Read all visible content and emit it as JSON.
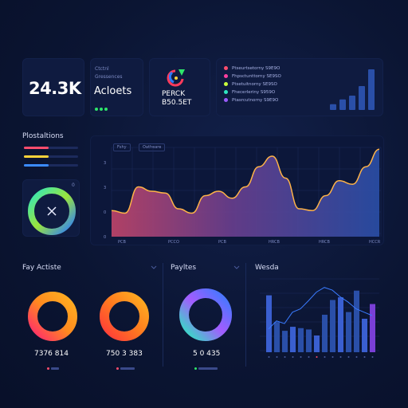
{
  "kpi": {
    "value": "24.3K",
    "caption_line1": "Ctctnl",
    "caption_line2": "Gressences",
    "caption_line3": "Acloets"
  },
  "badge": {
    "label_line1": "PERCK",
    "label_line2": "B50.5ET"
  },
  "legend": {
    "items": [
      {
        "label": "Ptseurtsetorny S9E9O",
        "color": "#ff4d6d"
      },
      {
        "label": "Fhpsctunttorny SE9SO",
        "color": "#ff3fa0"
      },
      {
        "label": "Ptsetuitnorny SE9SO",
        "color": "#c9ff3c"
      },
      {
        "label": "Fhecerleriny S959O",
        "color": "#2ee6c0"
      },
      {
        "label": "Ptasrcutnorny S9E9O",
        "color": "#9b5cff"
      }
    ]
  },
  "mini_bars": {
    "values": [
      0.12,
      0.22,
      0.3,
      0.5,
      0.85
    ],
    "color": "#2a4fa8"
  },
  "left_panel": {
    "title": "Plostaltions",
    "bars": [
      {
        "color": "#ff4d6d",
        "fill": 0.45
      },
      {
        "color": "#ffd33a",
        "fill": 0.45
      },
      {
        "color": "#3b8bff",
        "fill": 0.45
      }
    ],
    "ring_corner_mark": "0"
  },
  "main_chart": {
    "tab1": "Fshy",
    "tab2": "Oatheare",
    "y_ticks": [
      "3",
      "3",
      "0",
      "0"
    ],
    "x_ticks": [
      "PCB",
      "PCCO",
      "PCB",
      "HRCB",
      "HRCB",
      "HCCR"
    ]
  },
  "chart_data": {
    "type": "area",
    "x": [
      0,
      1,
      2,
      3,
      4,
      5,
      6,
      7,
      8,
      9,
      10,
      11,
      12,
      13,
      14,
      15,
      16,
      17,
      18,
      19,
      20
    ],
    "values": [
      0.28,
      0.25,
      0.55,
      0.5,
      0.48,
      0.3,
      0.25,
      0.45,
      0.5,
      0.42,
      0.55,
      0.78,
      0.9,
      0.65,
      0.3,
      0.28,
      0.45,
      0.62,
      0.58,
      0.78,
      0.98
    ],
    "ylim": [
      0,
      1
    ],
    "grid": true
  },
  "bottom_left": {
    "title": "Fay Actiste",
    "donut1": {
      "value": "7376 814",
      "fill": 0.78
    },
    "donut2": {
      "value": "750 3 383",
      "fill": 0.78
    }
  },
  "bottom_mid": {
    "title": "Payltes",
    "donut": {
      "value": "5 0 435",
      "fill": 0.72
    }
  },
  "bottom_right": {
    "title": "Wesda",
    "bars": [
      0.85,
      0.45,
      0.32,
      0.38,
      0.36,
      0.34,
      0.25,
      0.56,
      0.78,
      0.82,
      0.6,
      0.92,
      0.5,
      0.72
    ],
    "line": [
      0.3,
      0.42,
      0.38,
      0.55,
      0.6,
      0.72,
      0.85,
      0.92,
      0.88,
      0.78,
      0.7,
      0.6,
      0.55,
      0.5
    ]
  },
  "colors": {
    "background": "#0b1330",
    "card": "#0f1b40",
    "accent_blue": "#2a4fa8",
    "area_stroke": "#ffb347"
  }
}
